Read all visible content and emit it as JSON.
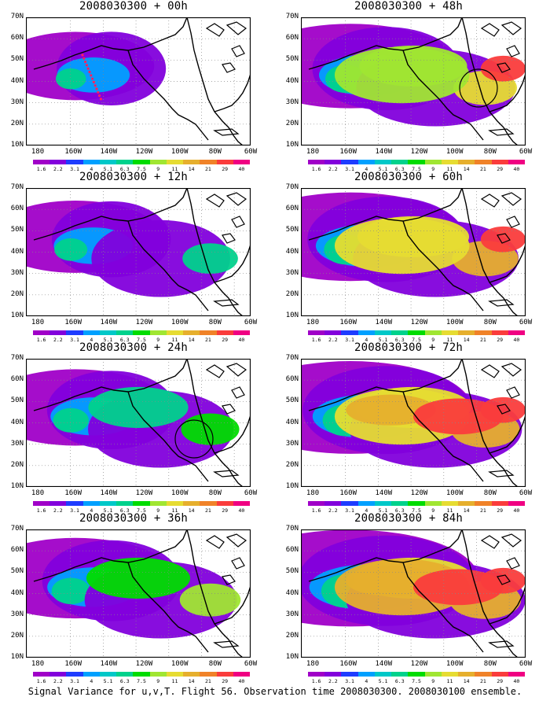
{
  "footer": "Signal Variance for u,v,T. Flight 56. Observation time 2008030300. 2008030100 ensemble.",
  "colorbar": {
    "labels": [
      "1.6",
      "2.2",
      "3.1",
      "4",
      "5.1",
      "6.3",
      "7.5",
      "9",
      "11",
      "14",
      "21",
      "29",
      "40"
    ],
    "colors": [
      "#a000c8",
      "#8200dc",
      "#1e3cff",
      "#00a0ff",
      "#00c8c8",
      "#00d28c",
      "#00dc00",
      "#a0e632",
      "#e6dc32",
      "#e6af2d",
      "#f08228",
      "#fa3c3c",
      "#f00082"
    ]
  },
  "chart_data": [
    {
      "type": "heatmap",
      "title": "2008030300 + 00h",
      "lead_hours": 0,
      "x_ticks": [
        "180",
        "160W",
        "140W",
        "120W",
        "100W",
        "80W",
        "60W"
      ],
      "y_ticks": [
        "10N",
        "20N",
        "30N",
        "40N",
        "50N",
        "60N",
        "70N"
      ],
      "xlim": [
        -190,
        -60
      ],
      "ylim": [
        10,
        70
      ],
      "colorbar_levels": [
        1.6,
        2.2,
        3.1,
        4,
        5.1,
        6.3,
        7.5,
        9,
        11,
        14,
        21,
        29,
        40
      ]
    },
    {
      "type": "heatmap",
      "title": "2008030300 + 48h",
      "lead_hours": 48,
      "x_ticks": [
        "180",
        "160W",
        "140W",
        "120W",
        "100W",
        "80W",
        "60W"
      ],
      "y_ticks": [
        "10N",
        "20N",
        "30N",
        "40N",
        "50N",
        "60N",
        "70N"
      ],
      "xlim": [
        -190,
        -60
      ],
      "ylim": [
        10,
        70
      ],
      "colorbar_levels": [
        1.6,
        2.2,
        3.1,
        4,
        5.1,
        6.3,
        7.5,
        9,
        11,
        14,
        21,
        29,
        40
      ]
    },
    {
      "type": "heatmap",
      "title": "2008030300 + 12h",
      "lead_hours": 12,
      "x_ticks": [
        "180",
        "160W",
        "140W",
        "120W",
        "100W",
        "80W",
        "60W"
      ],
      "y_ticks": [
        "10N",
        "20N",
        "30N",
        "40N",
        "50N",
        "60N",
        "70N"
      ],
      "xlim": [
        -190,
        -60
      ],
      "ylim": [
        10,
        70
      ],
      "colorbar_levels": [
        1.6,
        2.2,
        3.1,
        4,
        5.1,
        6.3,
        7.5,
        9,
        11,
        14,
        21,
        29,
        40
      ]
    },
    {
      "type": "heatmap",
      "title": "2008030300 + 60h",
      "lead_hours": 60,
      "x_ticks": [
        "180",
        "160W",
        "140W",
        "120W",
        "100W",
        "80W",
        "60W"
      ],
      "y_ticks": [
        "10N",
        "20N",
        "30N",
        "40N",
        "50N",
        "60N",
        "70N"
      ],
      "xlim": [
        -190,
        -60
      ],
      "ylim": [
        10,
        70
      ],
      "colorbar_levels": [
        1.6,
        2.2,
        3.1,
        4,
        5.1,
        6.3,
        7.5,
        9,
        11,
        14,
        21,
        29,
        40
      ]
    },
    {
      "type": "heatmap",
      "title": "2008030300 + 24h",
      "lead_hours": 24,
      "x_ticks": [
        "180",
        "160W",
        "140W",
        "120W",
        "100W",
        "80W",
        "60W"
      ],
      "y_ticks": [
        "10N",
        "20N",
        "30N",
        "40N",
        "50N",
        "60N",
        "70N"
      ],
      "xlim": [
        -190,
        -60
      ],
      "ylim": [
        10,
        70
      ],
      "colorbar_levels": [
        1.6,
        2.2,
        3.1,
        4,
        5.1,
        6.3,
        7.5,
        9,
        11,
        14,
        21,
        29,
        40
      ]
    },
    {
      "type": "heatmap",
      "title": "2008030300 + 72h",
      "lead_hours": 72,
      "x_ticks": [
        "180",
        "160W",
        "140W",
        "120W",
        "100W",
        "80W",
        "60W"
      ],
      "y_ticks": [
        "10N",
        "20N",
        "30N",
        "40N",
        "50N",
        "60N",
        "70N"
      ],
      "xlim": [
        -190,
        -60
      ],
      "ylim": [
        10,
        70
      ],
      "colorbar_levels": [
        1.6,
        2.2,
        3.1,
        4,
        5.1,
        6.3,
        7.5,
        9,
        11,
        14,
        21,
        29,
        40
      ]
    },
    {
      "type": "heatmap",
      "title": "2008030300 + 36h",
      "lead_hours": 36,
      "x_ticks": [
        "180",
        "160W",
        "140W",
        "120W",
        "100W",
        "80W",
        "60W"
      ],
      "y_ticks": [
        "10N",
        "20N",
        "30N",
        "40N",
        "50N",
        "60N",
        "70N"
      ],
      "xlim": [
        -190,
        -60
      ],
      "ylim": [
        10,
        70
      ],
      "colorbar_levels": [
        1.6,
        2.2,
        3.1,
        4,
        5.1,
        6.3,
        7.5,
        9,
        11,
        14,
        21,
        29,
        40
      ]
    },
    {
      "type": "heatmap",
      "title": "2008030300 + 84h",
      "lead_hours": 84,
      "x_ticks": [
        "180",
        "160W",
        "140W",
        "120W",
        "100W",
        "80W",
        "60W"
      ],
      "y_ticks": [
        "10N",
        "20N",
        "30N",
        "40N",
        "50N",
        "60N",
        "70N"
      ],
      "xlim": [
        -190,
        -60
      ],
      "ylim": [
        10,
        70
      ],
      "colorbar_levels": [
        1.6,
        2.2,
        3.1,
        4,
        5.1,
        6.3,
        7.5,
        9,
        11,
        14,
        21,
        29,
        40
      ]
    }
  ]
}
